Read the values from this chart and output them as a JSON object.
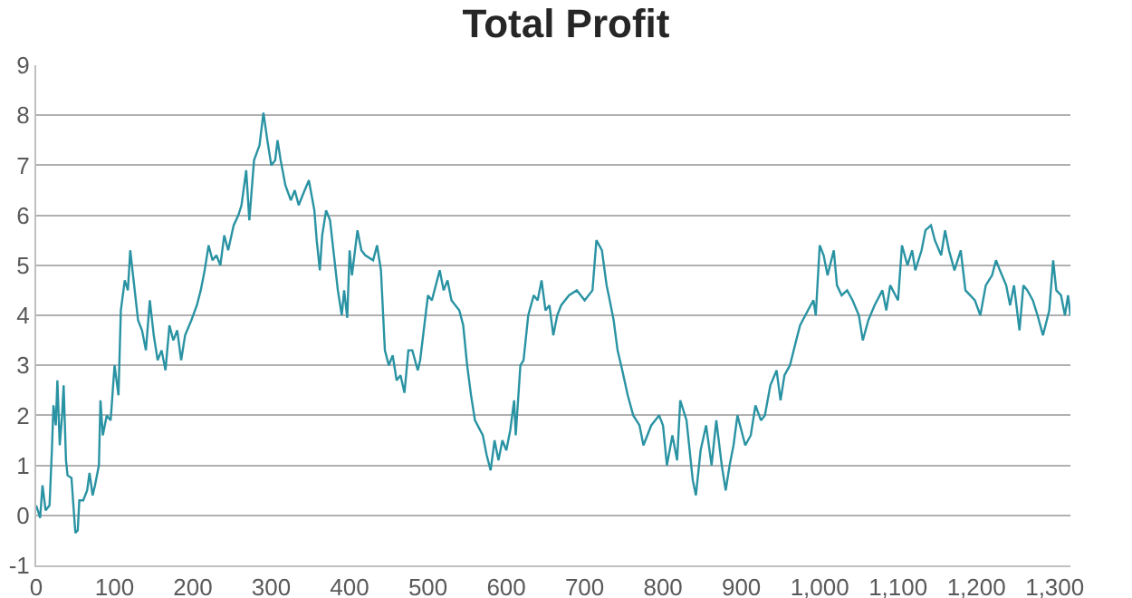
{
  "chart_data": {
    "type": "line",
    "title": "Total Profit",
    "xlim": [
      0,
      1320
    ],
    "xticks": [
      0,
      100,
      200,
      300,
      400,
      500,
      600,
      700,
      800,
      900,
      {
        "value": 1000,
        "label": "1,000"
      },
      {
        "value": 1100,
        "label": "1,100"
      },
      {
        "value": 1200,
        "label": "1,200"
      },
      {
        "value": 1300,
        "label": "1,300"
      }
    ],
    "ylim": [
      -1,
      9
    ],
    "yticks": [
      -1,
      0,
      1,
      2,
      3,
      4,
      5,
      6,
      7,
      8,
      9
    ],
    "grid": "y",
    "marker": "none",
    "line_style": "solid",
    "x": [
      0,
      5,
      8,
      12,
      17,
      20,
      22,
      25,
      27,
      30,
      33,
      35,
      38,
      40,
      45,
      47,
      50,
      53,
      55,
      60,
      65,
      68,
      72,
      75,
      80,
      82,
      85,
      90,
      95,
      100,
      105,
      108,
      113,
      117,
      120,
      125,
      130,
      135,
      140,
      145,
      150,
      155,
      160,
      165,
      170,
      175,
      180,
      185,
      190,
      198,
      205,
      210,
      215,
      220,
      225,
      230,
      235,
      240,
      245,
      252,
      258,
      262,
      268,
      272,
      278,
      285,
      290,
      295,
      300,
      305,
      308,
      312,
      318,
      325,
      330,
      335,
      340,
      348,
      355,
      358,
      362,
      365,
      370,
      375,
      385,
      390,
      393,
      397,
      400,
      403,
      410,
      415,
      420,
      430,
      435,
      440,
      445,
      450,
      455,
      460,
      465,
      470,
      475,
      480,
      487,
      490,
      500,
      505,
      510,
      515,
      520,
      525,
      530,
      540,
      545,
      550,
      555,
      560,
      570,
      575,
      580,
      585,
      590,
      595,
      600,
      605,
      610,
      612,
      618,
      622,
      628,
      635,
      640,
      645,
      650,
      655,
      660,
      665,
      670,
      680,
      690,
      700,
      710,
      715,
      722,
      728,
      732,
      737,
      742,
      748,
      755,
      762,
      770,
      775,
      785,
      795,
      800,
      805,
      812,
      818,
      822,
      830,
      838,
      842,
      848,
      855,
      862,
      868,
      875,
      880,
      885,
      890,
      895,
      905,
      912,
      918,
      925,
      930,
      937,
      945,
      950,
      955,
      962,
      970,
      975,
      985,
      992,
      995,
      1000,
      1005,
      1010,
      1018,
      1022,
      1028,
      1035,
      1042,
      1050,
      1055,
      1062,
      1070,
      1080,
      1085,
      1090,
      1100,
      1105,
      1112,
      1118,
      1122,
      1130,
      1135,
      1142,
      1147,
      1155,
      1160,
      1165,
      1172,
      1180,
      1186,
      1192,
      1198,
      1205,
      1212,
      1220,
      1225,
      1230,
      1238,
      1243,
      1248,
      1255,
      1260,
      1265,
      1272,
      1278,
      1285,
      1293,
      1298,
      1302,
      1308,
      1313,
      1317,
      1320
    ],
    "series": [
      {
        "color": "#2a93a3",
        "values": [
          0.2,
          -0.05,
          0.6,
          0.1,
          0.2,
          1.3,
          2.2,
          1.8,
          2.7,
          1.4,
          2.0,
          2.6,
          1.1,
          0.8,
          0.75,
          0.3,
          -0.35,
          -0.3,
          0.3,
          0.3,
          0.5,
          0.85,
          0.4,
          0.6,
          1.0,
          2.3,
          1.6,
          2.0,
          1.9,
          3.0,
          2.4,
          4.1,
          4.7,
          4.5,
          5.3,
          4.6,
          3.9,
          3.7,
          3.3,
          4.3,
          3.6,
          3.1,
          3.3,
          2.9,
          3.8,
          3.5,
          3.7,
          3.1,
          3.6,
          3.9,
          4.2,
          4.5,
          4.9,
          5.4,
          5.1,
          5.2,
          5.0,
          5.6,
          5.3,
          5.8,
          6.0,
          6.2,
          6.9,
          5.9,
          7.1,
          7.4,
          8.05,
          7.5,
          7.0,
          7.1,
          7.5,
          7.1,
          6.6,
          6.3,
          6.5,
          6.2,
          6.4,
          6.7,
          6.1,
          5.5,
          4.9,
          5.6,
          6.1,
          5.9,
          4.5,
          4.0,
          4.5,
          3.95,
          5.3,
          4.8,
          5.7,
          5.3,
          5.2,
          5.1,
          5.4,
          4.9,
          3.3,
          3.0,
          3.2,
          2.7,
          2.8,
          2.45,
          3.3,
          3.3,
          2.9,
          3.1,
          4.4,
          4.3,
          4.6,
          4.9,
          4.5,
          4.7,
          4.3,
          4.1,
          3.8,
          3.0,
          2.4,
          1.9,
          1.6,
          1.2,
          0.9,
          1.5,
          1.1,
          1.5,
          1.3,
          1.7,
          2.3,
          1.6,
          3.0,
          3.1,
          4.0,
          4.4,
          4.3,
          4.7,
          4.1,
          4.2,
          3.6,
          4.0,
          4.2,
          4.4,
          4.5,
          4.3,
          4.5,
          5.5,
          5.3,
          4.6,
          4.3,
          3.9,
          3.3,
          2.9,
          2.4,
          2.0,
          1.8,
          1.4,
          1.8,
          2.0,
          1.8,
          1.0,
          1.6,
          1.1,
          2.3,
          1.9,
          0.7,
          0.4,
          1.3,
          1.8,
          1.0,
          1.9,
          1.0,
          0.5,
          1.0,
          1.4,
          2.0,
          1.4,
          1.6,
          2.2,
          1.9,
          2.0,
          2.6,
          2.9,
          2.3,
          2.8,
          3.0,
          3.5,
          3.8,
          4.1,
          4.3,
          4.0,
          5.4,
          5.2,
          4.8,
          5.3,
          4.6,
          4.4,
          4.5,
          4.3,
          4.0,
          3.5,
          3.9,
          4.2,
          4.5,
          4.1,
          4.6,
          4.3,
          5.4,
          5.0,
          5.3,
          4.9,
          5.3,
          5.7,
          5.8,
          5.5,
          5.2,
          5.7,
          5.3,
          4.9,
          5.3,
          4.5,
          4.4,
          4.3,
          4.0,
          4.6,
          4.8,
          5.1,
          4.9,
          4.6,
          4.2,
          4.6,
          3.7,
          4.6,
          4.5,
          4.3,
          4.0,
          3.6,
          4.1,
          5.1,
          4.5,
          4.4,
          4.0,
          4.4,
          4.0
        ]
      }
    ]
  }
}
